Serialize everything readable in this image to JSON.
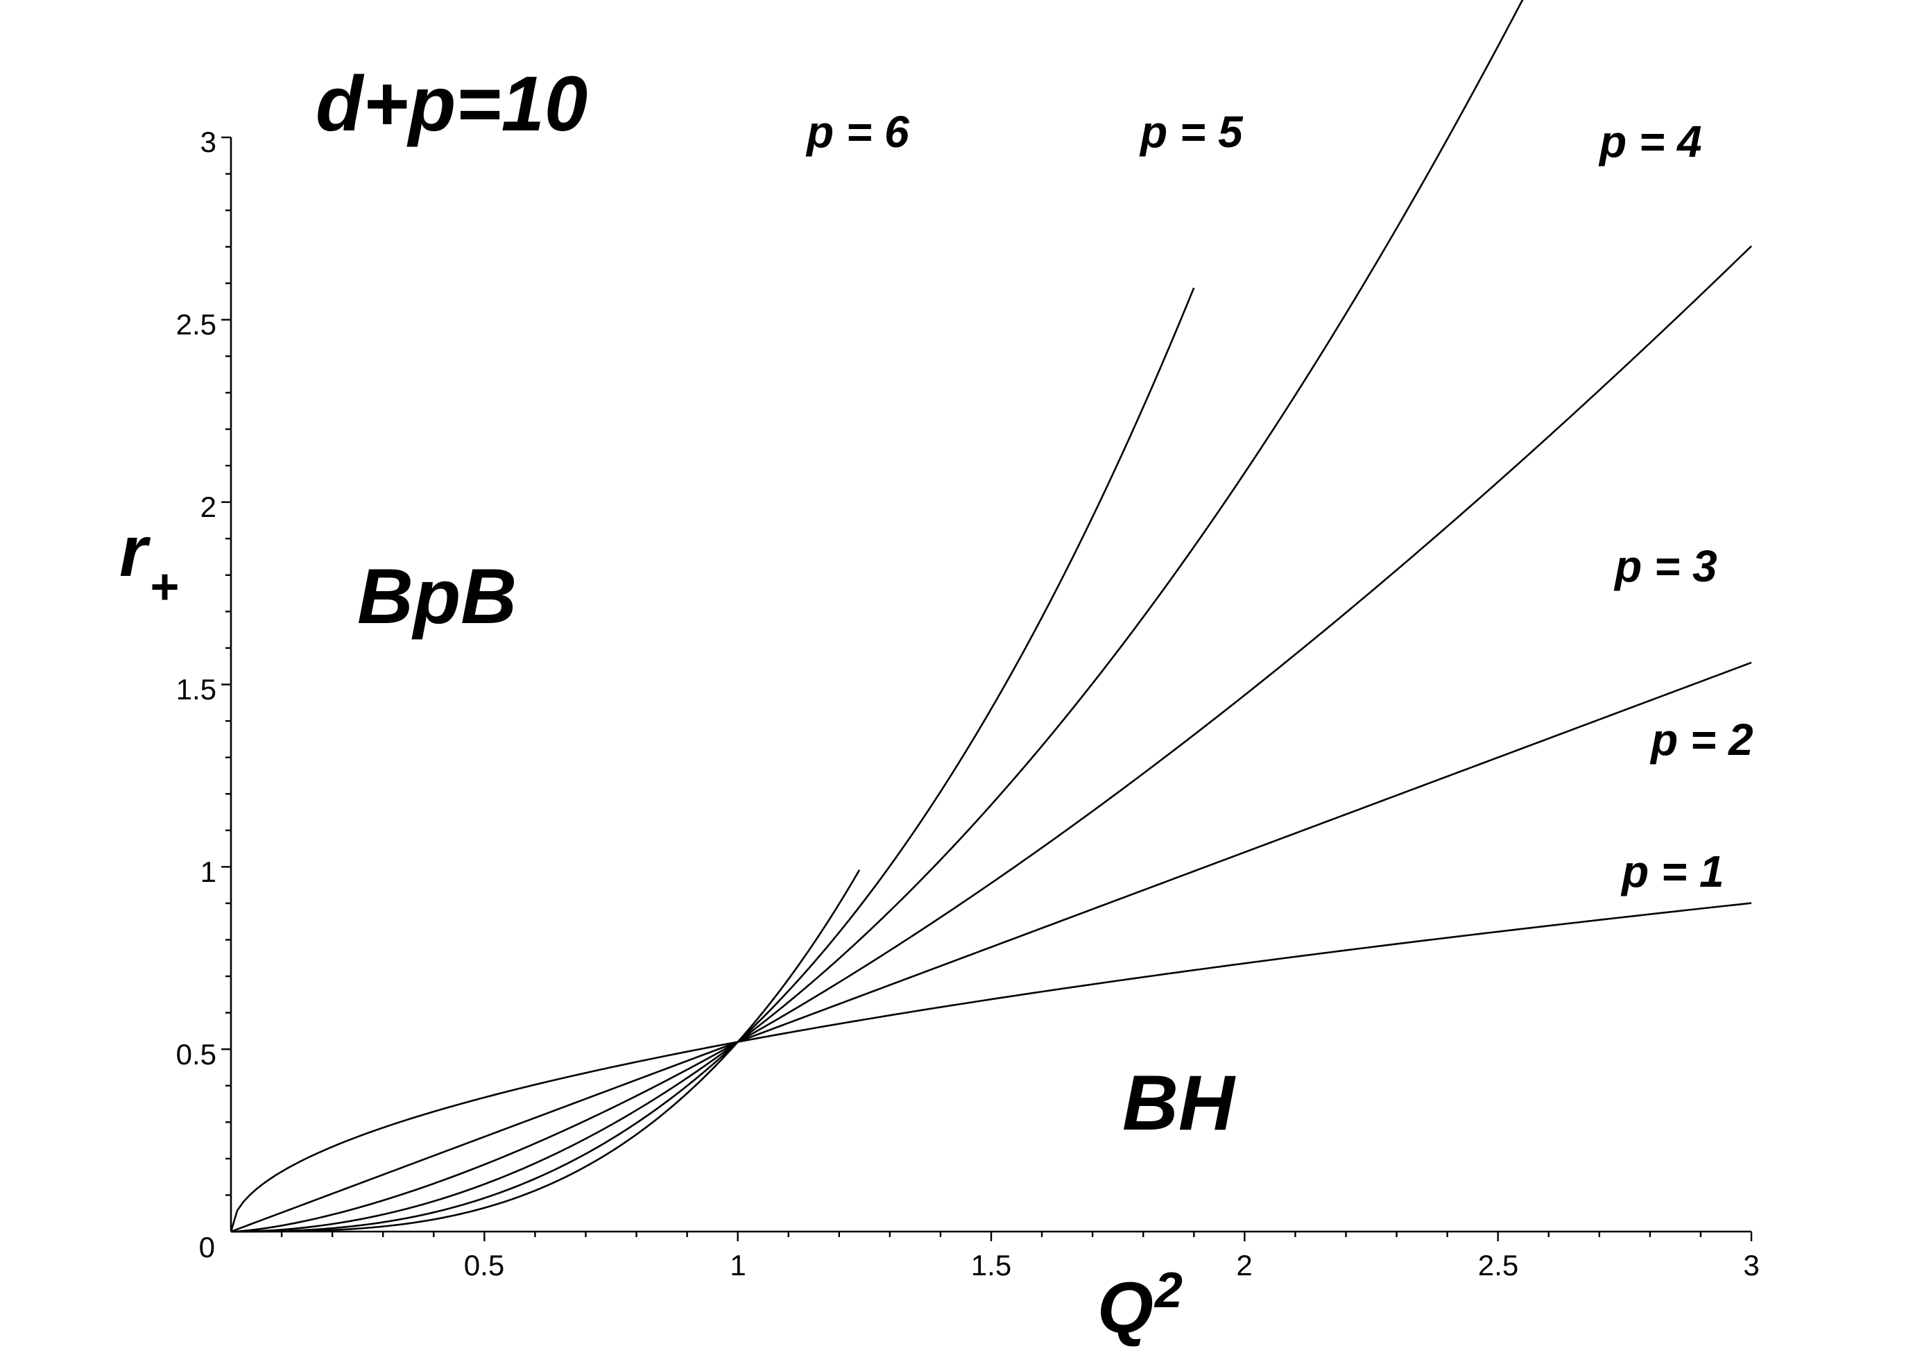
{
  "chart_data": {
    "type": "line",
    "title": "d+p=10",
    "xlabel": "Q",
    "xlabel_sup": "2",
    "ylabel": "r",
    "ylabel_sub": "+",
    "xlim": [
      0,
      3
    ],
    "ylim": [
      0,
      3
    ],
    "xticks": [
      "0.5",
      "1",
      "1.5",
      "2",
      "2.5",
      "3"
    ],
    "yticks": [
      "0",
      "0.5",
      "1",
      "1.5",
      "2",
      "2.5",
      "3"
    ],
    "grid": false,
    "legend": "none",
    "annotations": [
      "BpB",
      "BH"
    ],
    "series": [
      {
        "name": "p = 1",
        "exponent": 1,
        "x_end": 3.0
      },
      {
        "name": "p = 2",
        "exponent": 2,
        "x_end": 3.0
      },
      {
        "name": "p = 3",
        "exponent": 3,
        "x_end": 3.0
      },
      {
        "name": "p = 4",
        "exponent": 4,
        "x_end": 2.94
      },
      {
        "name": "p = 5",
        "exponent": 5,
        "x_end": 1.9
      },
      {
        "name": "p = 6",
        "exponent": 6,
        "x_end": 1.24
      }
    ]
  }
}
